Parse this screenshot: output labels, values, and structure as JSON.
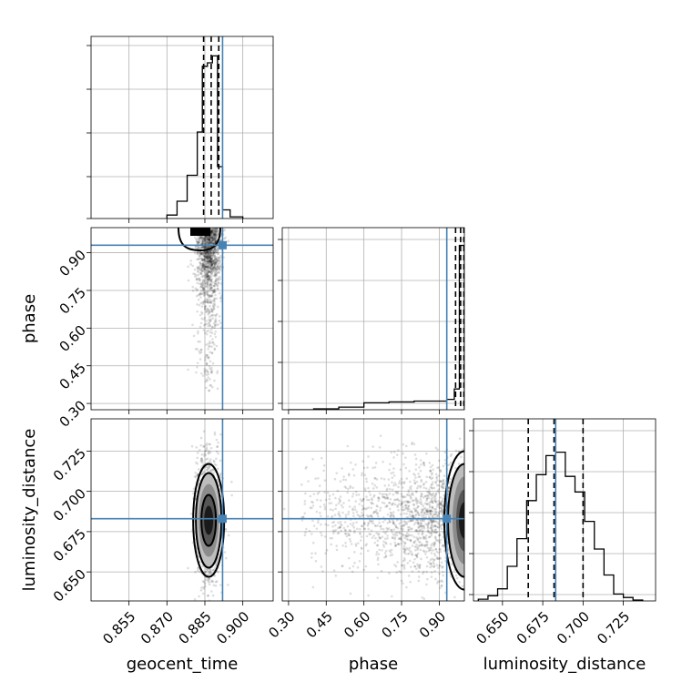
{
  "chart_data": {
    "type": "corner",
    "parameters": [
      "geocent_time",
      "phase",
      "luminosity_distance"
    ],
    "truths": {
      "geocent_time": 0.892,
      "phase": 0.93,
      "luminosity_distance": 0.683
    },
    "truth_color": "#4682b4",
    "quantiles": {
      "geocent_time": [
        0.8845,
        0.8875,
        0.8905
      ],
      "phase": [
        0.965,
        0.985,
        0.998
      ],
      "luminosity_distance": [
        0.666,
        0.682,
        0.7
      ]
    },
    "ranges": {
      "geocent_time": [
        0.84,
        0.912
      ],
      "phase": [
        0.275,
        1.0
      ],
      "luminosity_distance": [
        0.632,
        0.745
      ]
    },
    "ticks": {
      "geocent_time": [
        0.855,
        0.87,
        0.885,
        0.9
      ],
      "phase": [
        0.3,
        0.45,
        0.6,
        0.75,
        0.9
      ],
      "luminosity_distance": [
        0.65,
        0.675,
        0.7,
        0.725
      ]
    },
    "tick_labels": {
      "geocent_time": [
        "0.855",
        "0.870",
        "0.885",
        "0.900"
      ],
      "phase": [
        "0.30",
        "0.45",
        "0.60",
        "0.75",
        "0.90"
      ],
      "luminosity_distance": [
        "0.650",
        "0.675",
        "0.700",
        "0.725"
      ]
    },
    "hist_geocent_time": {
      "edges": [
        0.87,
        0.874,
        0.878,
        0.882,
        0.884,
        0.886,
        0.888,
        0.89,
        0.892,
        0.895,
        0.9
      ],
      "counts": [
        0.02,
        0.1,
        0.25,
        0.5,
        0.88,
        0.9,
        0.94,
        0.3,
        0.05,
        0.01
      ]
    },
    "hist_phase": {
      "edges": [
        0.3,
        0.4,
        0.5,
        0.6,
        0.7,
        0.8,
        0.9,
        0.93,
        0.96,
        0.98,
        1.0
      ],
      "counts": [
        0.0,
        0.005,
        0.015,
        0.04,
        0.045,
        0.05,
        0.05,
        0.06,
        0.12,
        0.95
      ]
    },
    "hist_luminosity_distance": {
      "edges": [
        0.635,
        0.641,
        0.647,
        0.653,
        0.659,
        0.665,
        0.671,
        0.677,
        0.683,
        0.689,
        0.695,
        0.701,
        0.707,
        0.713,
        0.719,
        0.725,
        0.731,
        0.737
      ],
      "counts": [
        0.01,
        0.03,
        0.07,
        0.2,
        0.36,
        0.58,
        0.73,
        0.84,
        0.86,
        0.72,
        0.63,
        0.46,
        0.3,
        0.15,
        0.04,
        0.02,
        0.005
      ]
    },
    "grid": true
  }
}
